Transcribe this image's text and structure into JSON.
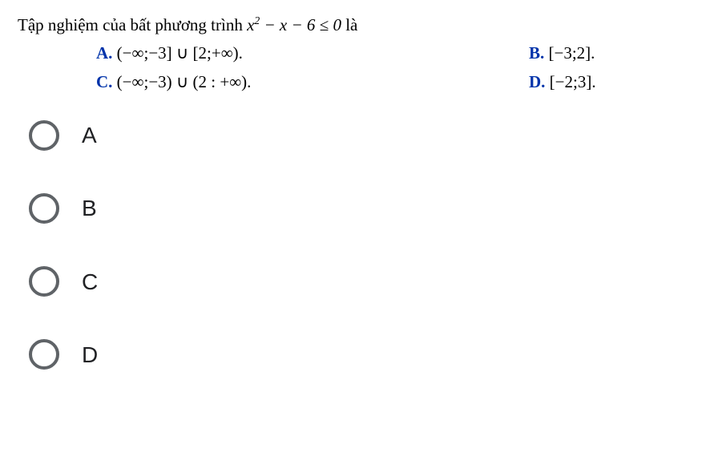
{
  "question": {
    "stem_prefix": "Tập nghiệm của bất phương trình  ",
    "stem_math": "x² − x − 6 ≤ 0",
    "stem_suffix": " là",
    "choices": {
      "A": {
        "label": "A.",
        "text": "(−∞;−3] ∪ [2;+∞)."
      },
      "B": {
        "label": "B.",
        "text": "[−3;2]."
      },
      "C": {
        "label": "C.",
        "text": "(−∞;−3) ∪ (2 : +∞)."
      },
      "D": {
        "label": "D.",
        "text": "[−2;3]."
      }
    }
  },
  "answers": {
    "A": "A",
    "B": "B",
    "C": "C",
    "D": "D"
  },
  "colors": {
    "choice_label": "#0033aa",
    "radio_border": "#5f6367",
    "text": "#000000",
    "background": "#ffffff"
  }
}
